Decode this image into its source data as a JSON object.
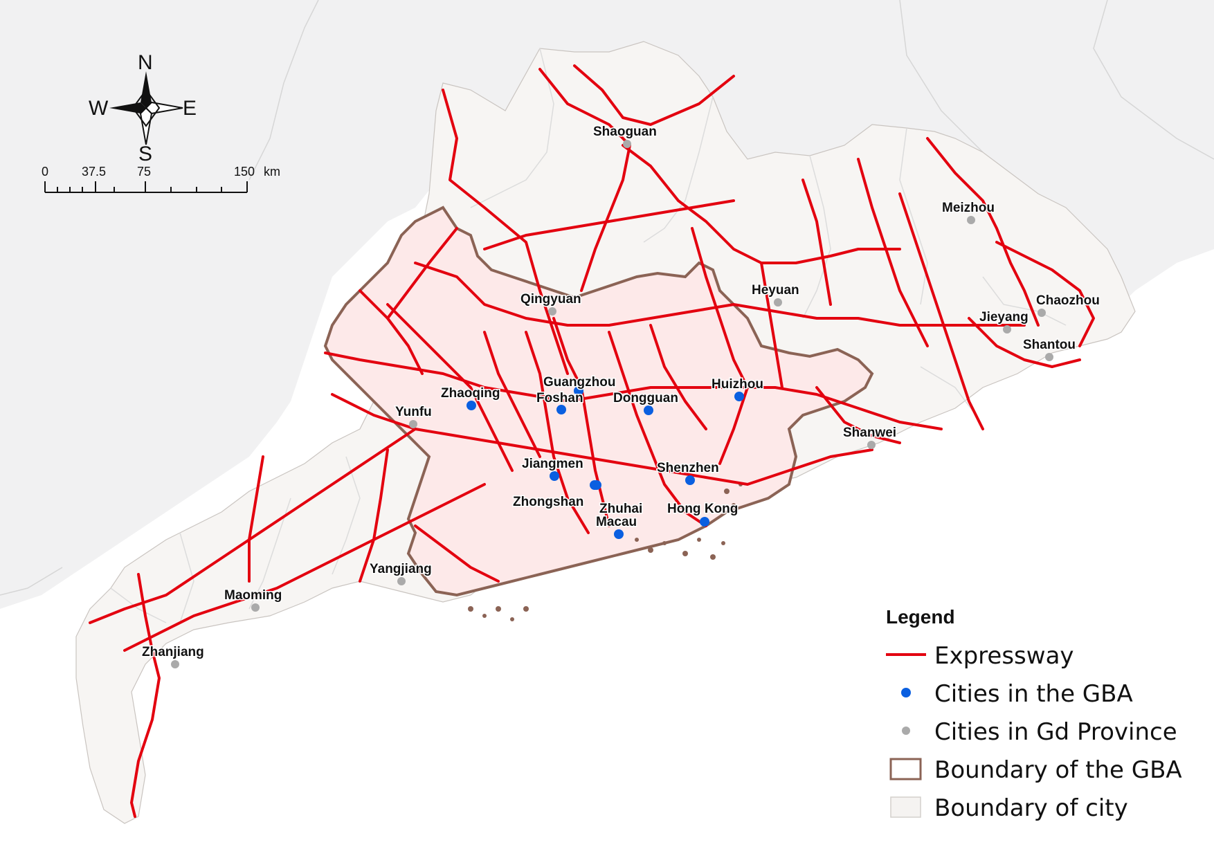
{
  "compass": {
    "north": "N",
    "south": "S",
    "east": "E",
    "west": "W"
  },
  "scale_bar": {
    "ticks": [
      "0",
      "37.5",
      "75",
      "150"
    ],
    "unit": "km"
  },
  "cities_gba": [
    {
      "name": "Guangzhou"
    },
    {
      "name": "Foshan"
    },
    {
      "name": "Zhaoqing"
    },
    {
      "name": "Dongguan"
    },
    {
      "name": "Huizhou"
    },
    {
      "name": "Jiangmen"
    },
    {
      "name": "Zhongshan"
    },
    {
      "name": "Shenzhen"
    },
    {
      "name": "Zhuhai"
    },
    {
      "name": "Hong Kong"
    },
    {
      "name": "Macau"
    }
  ],
  "cities_gd": [
    {
      "name": "Shaoguan"
    },
    {
      "name": "Qingyuan"
    },
    {
      "name": "Heyuan"
    },
    {
      "name": "Meizhou"
    },
    {
      "name": "Chaozhou"
    },
    {
      "name": "Jieyang"
    },
    {
      "name": "Shantou"
    },
    {
      "name": "Shanwei"
    },
    {
      "name": "Yunfu"
    },
    {
      "name": "Yangjiang"
    },
    {
      "name": "Maoming"
    },
    {
      "name": "Zhanjiang"
    }
  ],
  "legend": {
    "title": "Legend",
    "items": [
      {
        "label": "Expressway",
        "symbol": "line",
        "color": "#e3000f"
      },
      {
        "label": "Cities in the GBA",
        "symbol": "dot",
        "color": "#0a5fe0"
      },
      {
        "label": "Cities in Gd Province",
        "symbol": "dot",
        "color": "#aaaaaa"
      },
      {
        "label": "Boundary of the GBA",
        "symbol": "box-outline",
        "color": "#8b6355"
      },
      {
        "label": "Boundary of city",
        "symbol": "box-fill",
        "color": "#f5f3f1"
      }
    ]
  },
  "colors": {
    "background": "#ffffff",
    "outside_land": "#f1f1f2",
    "province_fill": "#f7f5f3",
    "gba_fill": "#fde9e9",
    "gba_boundary": "#8b6355",
    "city_boundary": "#dcdcdc",
    "expressway": "#e3000f",
    "gba_city": "#0a5fe0",
    "gd_city": "#aaaaaa"
  }
}
